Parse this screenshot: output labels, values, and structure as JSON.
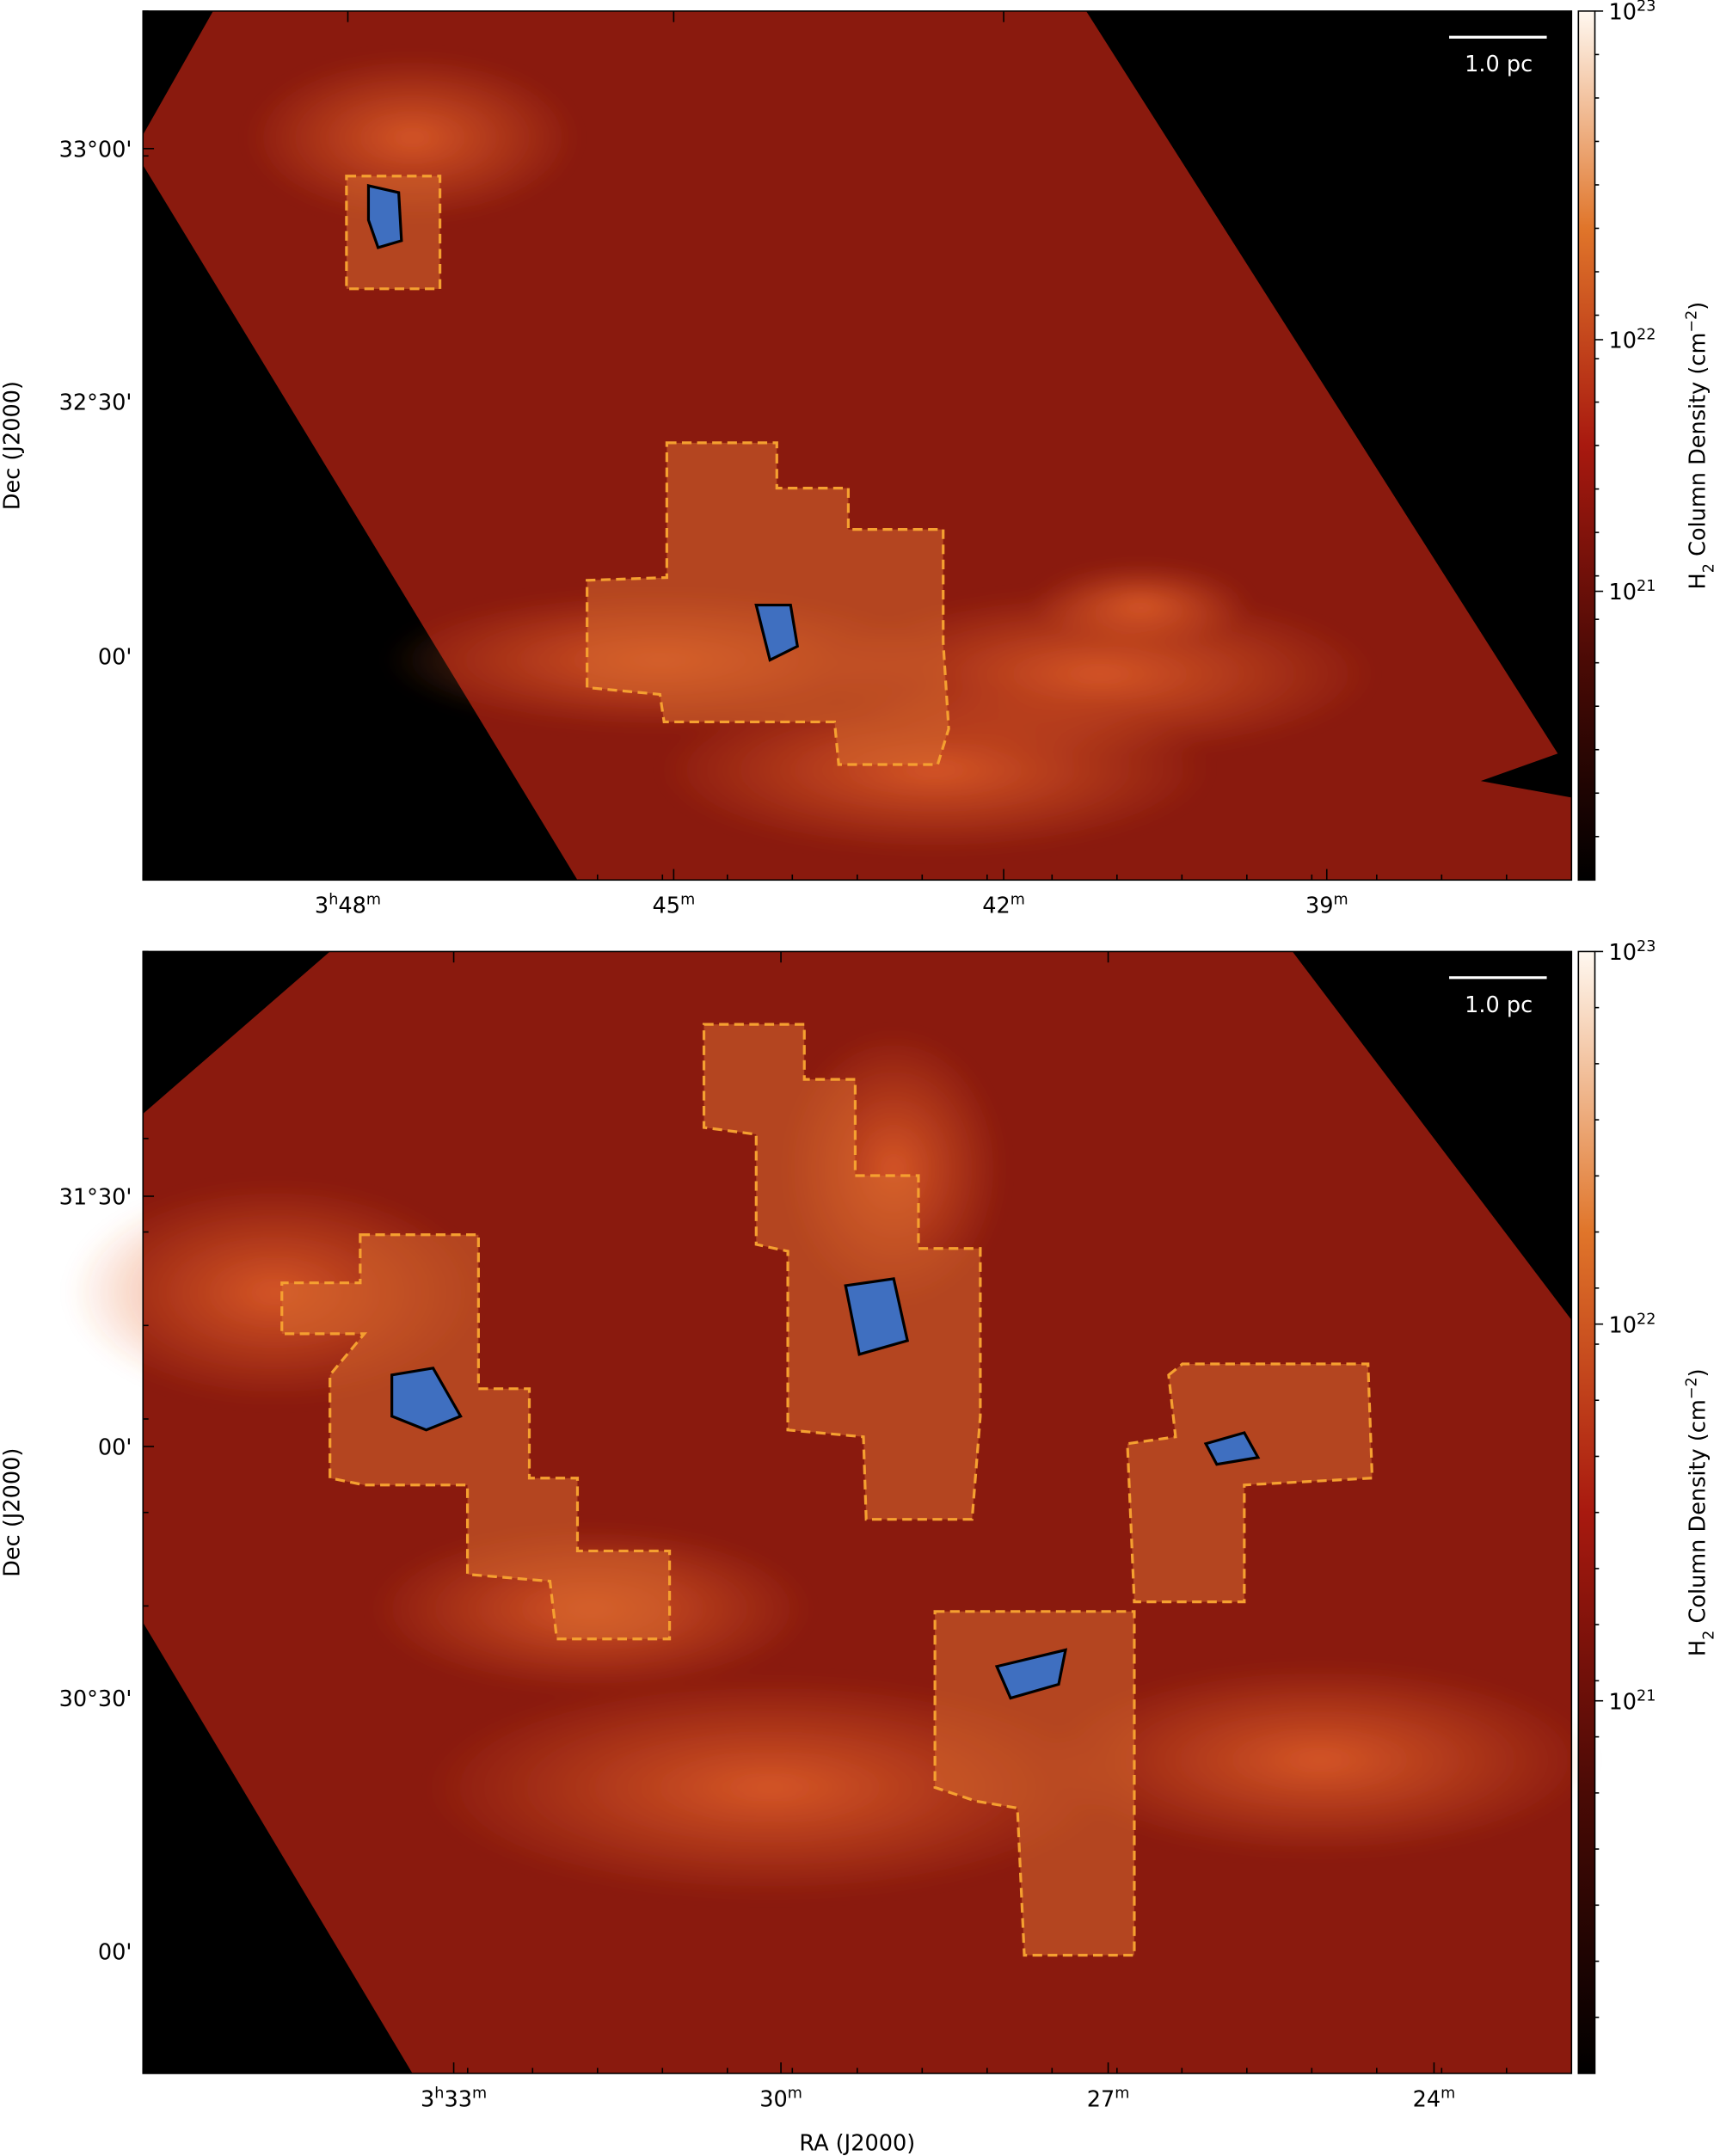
{
  "panels": [
    {
      "dec_ticks": [
        "33°00'",
        "32°30'",
        "00'"
      ],
      "ra_ticks": [
        [
          "3",
          "h",
          "48",
          "m"
        ],
        [
          "45",
          "m"
        ],
        [
          "42",
          "m"
        ],
        [
          "39",
          "m"
        ]
      ],
      "y_label": "Dec (J2000)",
      "colorbar_ticks": [
        [
          "10",
          "23"
        ],
        [
          "10",
          "22"
        ],
        [
          "10",
          "21"
        ]
      ],
      "colorbar_label": [
        {
          "text": "H"
        },
        {
          "text": "2",
          "shift": "sub"
        },
        {
          "text": " Column Density (cm"
        },
        {
          "text": "−2",
          "shift": "super"
        },
        {
          "text": ")"
        }
      ],
      "scale_bar": "1.0 pc"
    },
    {
      "dec_ticks": [
        "31°30'",
        "00'",
        "30°30'",
        "00'"
      ],
      "ra_ticks": [
        [
          "3",
          "h",
          "33",
          "m"
        ],
        [
          "30",
          "m"
        ],
        [
          "27",
          "m"
        ],
        [
          "24",
          "m"
        ]
      ],
      "y_label": "Dec (J2000)",
      "x_label": "RA (J2000)",
      "colorbar_ticks": [
        [
          "10",
          "23"
        ],
        [
          "10",
          "22"
        ],
        [
          "10",
          "21"
        ]
      ],
      "colorbar_label": [
        {
          "text": "H"
        },
        {
          "text": "2",
          "shift": "sub"
        },
        {
          "text": " Column Density (cm"
        },
        {
          "text": "−2",
          "shift": "super"
        },
        {
          "text": ")"
        }
      ],
      "scale_bar": "1.0 pc"
    }
  ]
}
